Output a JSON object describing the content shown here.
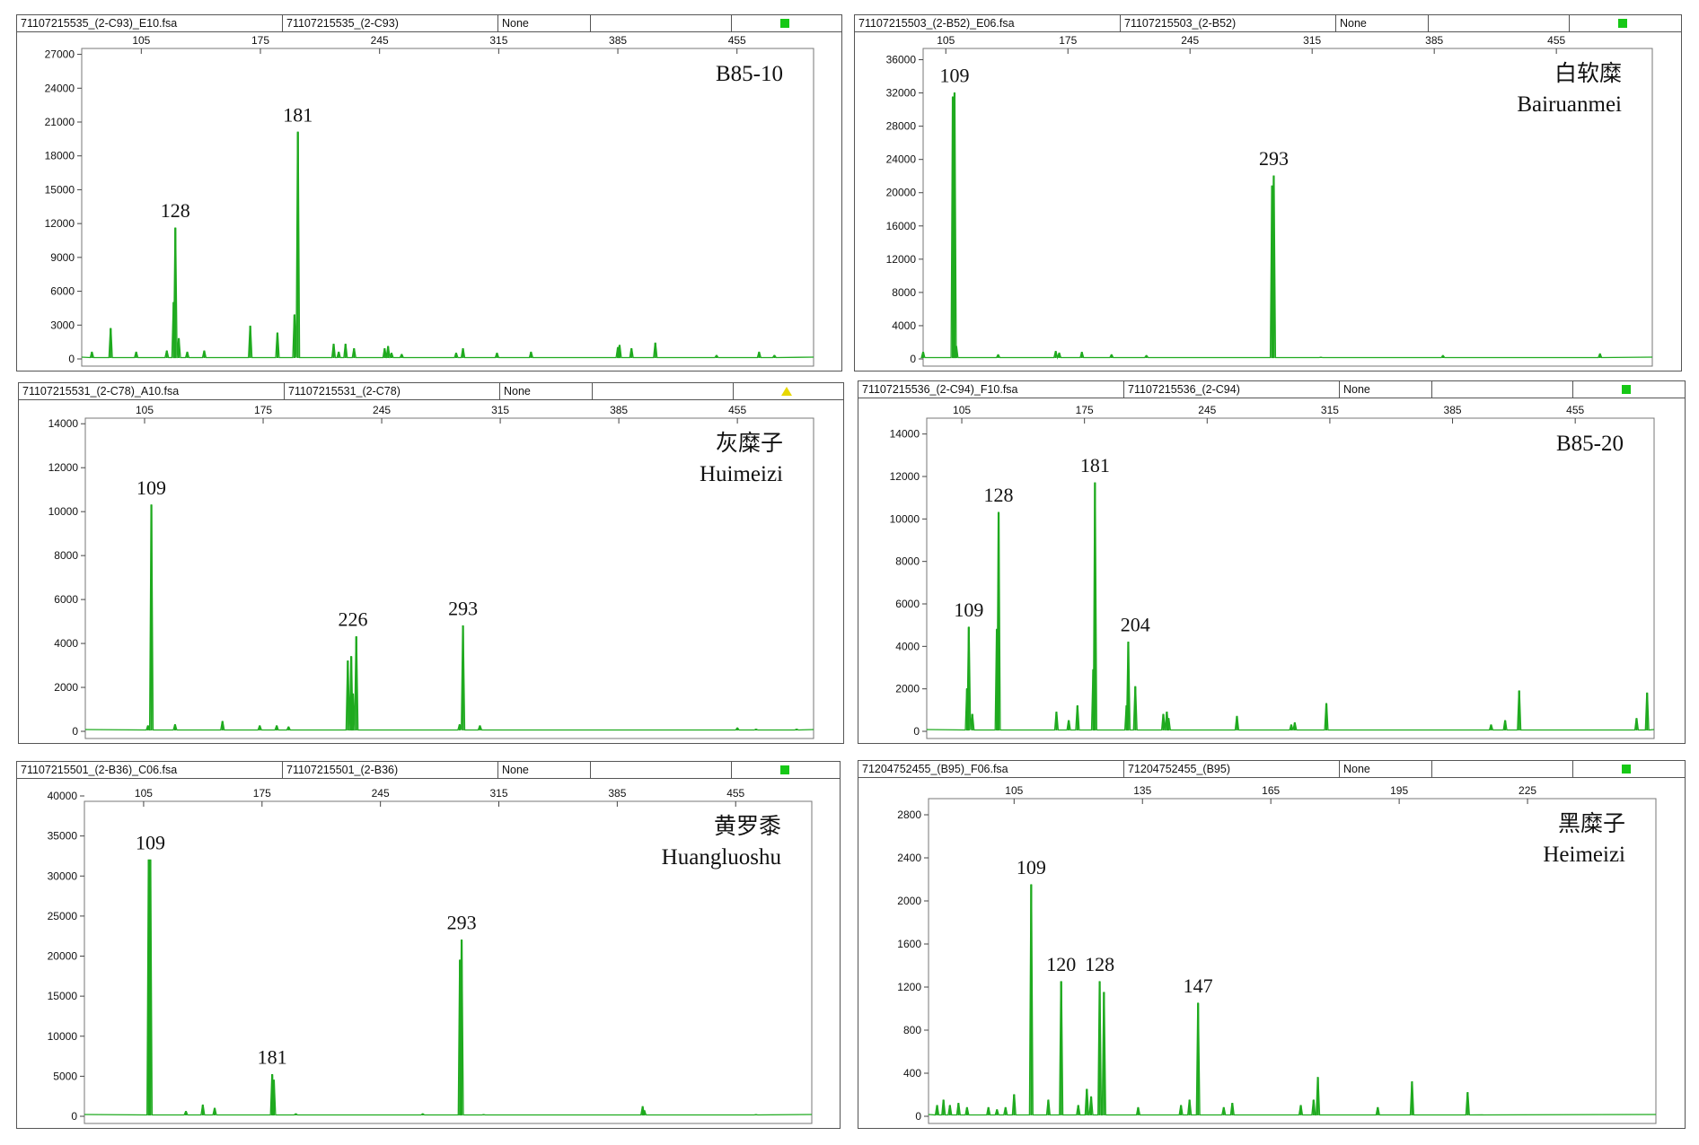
{
  "colors": {
    "trace": "#1faa1f",
    "indicator_ok": "#16c816",
    "indicator_warn": "#e8d800"
  },
  "panels": [
    {
      "header": {
        "file": "71107215535_(2-C93)_E10.fsa",
        "sample": "71107215535_(2-C93)",
        "std": "None",
        "indicator": "green-square"
      },
      "sample_name": [
        "B85-10"
      ],
      "chart_data": {
        "type": "line",
        "x_ticks": [
          105,
          175,
          245,
          315,
          385,
          455
        ],
        "y_ticks": [
          0,
          3000,
          6000,
          9000,
          12000,
          15000,
          18000,
          21000,
          24000,
          27000
        ],
        "xlim": [
          70,
          500
        ],
        "ylim": [
          0,
          28000
        ],
        "peaks": [
          [
            76,
            600
          ],
          [
            87,
            2700
          ],
          [
            102,
            600
          ],
          [
            120,
            700
          ],
          [
            124,
            5000
          ],
          [
            125,
            11600
          ],
          [
            127,
            1800
          ],
          [
            132,
            600
          ],
          [
            142,
            700
          ],
          [
            169,
            2900
          ],
          [
            185,
            2300
          ],
          [
            195,
            3900
          ],
          [
            197,
            20100
          ],
          [
            218,
            1300
          ],
          [
            221,
            600
          ],
          [
            225,
            1300
          ],
          [
            230,
            900
          ],
          [
            248,
            900
          ],
          [
            250,
            1100
          ],
          [
            252,
            500
          ],
          [
            258,
            400
          ],
          [
            290,
            500
          ],
          [
            294,
            900
          ],
          [
            314,
            500
          ],
          [
            334,
            600
          ],
          [
            385,
            1000
          ],
          [
            386,
            1200
          ],
          [
            393,
            900
          ],
          [
            407,
            1400
          ],
          [
            443,
            300
          ],
          [
            468,
            600
          ],
          [
            477,
            300
          ]
        ],
        "labels": [
          {
            "text": "128",
            "x": 125,
            "y": 11600
          },
          {
            "text": "181",
            "x": 197,
            "y": 20100
          }
        ]
      }
    },
    {
      "header": {
        "file": "71107215503_(2-B52)_E06.fsa",
        "sample": "71107215503_(2-B52)",
        "std": "None",
        "indicator": "green-square"
      },
      "sample_name": [
        "白软糜",
        "Bairuanmei"
      ],
      "chart_data": {
        "type": "line",
        "x_ticks": [
          105,
          175,
          245,
          315,
          385,
          455
        ],
        "y_ticks": [
          0,
          4000,
          8000,
          12000,
          16000,
          20000,
          24000,
          28000,
          32000,
          36000
        ],
        "xlim": [
          92,
          510
        ],
        "ylim": [
          0,
          38000
        ],
        "peaks": [
          [
            92,
            800
          ],
          [
            109,
            31500
          ],
          [
            110,
            32000
          ],
          [
            111,
            1500
          ],
          [
            135,
            500
          ],
          [
            168,
            900
          ],
          [
            170,
            700
          ],
          [
            183,
            800
          ],
          [
            200,
            500
          ],
          [
            220,
            400
          ],
          [
            292,
            20800
          ],
          [
            293,
            22000
          ],
          [
            320,
            200
          ],
          [
            390,
            400
          ],
          [
            480,
            600
          ]
        ],
        "labels": [
          {
            "text": "109",
            "x": 110,
            "y": 32000
          },
          {
            "text": "293",
            "x": 293,
            "y": 22000
          }
        ]
      }
    },
    {
      "header": {
        "file": "71107215531_(2-C78)_A10.fsa",
        "sample": "71107215531_(2-C78)",
        "std": "None",
        "indicator": "yellow-triangle"
      },
      "sample_name": [
        "灰糜子",
        "Huimeizi"
      ],
      "chart_data": {
        "type": "line",
        "x_ticks": [
          105,
          175,
          245,
          315,
          385,
          455
        ],
        "y_ticks": [
          0,
          2000,
          4000,
          6000,
          8000,
          10000,
          12000,
          14000
        ],
        "xlim": [
          70,
          500
        ],
        "ylim": [
          0,
          14500
        ],
        "peaks": [
          [
            107,
            250
          ],
          [
            109,
            10300
          ],
          [
            123,
            300
          ],
          [
            151,
            450
          ],
          [
            173,
            250
          ],
          [
            183,
            250
          ],
          [
            190,
            200
          ],
          [
            225,
            3200
          ],
          [
            227,
            3400
          ],
          [
            228,
            1700
          ],
          [
            230,
            4300
          ],
          [
            291,
            300
          ],
          [
            293,
            4800
          ],
          [
            303,
            250
          ],
          [
            455,
            150
          ],
          [
            466,
            100
          ],
          [
            490,
            100
          ]
        ],
        "labels": [
          {
            "text": "109",
            "x": 109,
            "y": 10300
          },
          {
            "text": "226",
            "x": 228,
            "y": 4300
          },
          {
            "text": "293",
            "x": 293,
            "y": 4800
          }
        ]
      }
    },
    {
      "header": {
        "file": "71107215536_(2-C94)_F10.fsa",
        "sample": "71107215536_(2-C94)",
        "std": "None",
        "indicator": "green-square"
      },
      "sample_name": [
        "B85-20"
      ],
      "chart_data": {
        "type": "line",
        "x_ticks": [
          105,
          175,
          245,
          315,
          385,
          455
        ],
        "y_ticks": [
          0,
          2000,
          4000,
          6000,
          8000,
          10000,
          12000,
          14000
        ],
        "xlim": [
          85,
          500
        ],
        "ylim": [
          0,
          15000
        ],
        "peaks": [
          [
            108,
            2000
          ],
          [
            109,
            4900
          ],
          [
            111,
            800
          ],
          [
            125,
            4800
          ],
          [
            126,
            10300
          ],
          [
            159,
            900
          ],
          [
            166,
            500
          ],
          [
            171,
            1200
          ],
          [
            180,
            2900
          ],
          [
            181,
            11700
          ],
          [
            199,
            1200
          ],
          [
            200,
            4200
          ],
          [
            204,
            2100
          ],
          [
            220,
            800
          ],
          [
            222,
            900
          ],
          [
            223,
            600
          ],
          [
            262,
            700
          ],
          [
            293,
            300
          ],
          [
            295,
            400
          ],
          [
            313,
            1300
          ],
          [
            407,
            300
          ],
          [
            415,
            500
          ],
          [
            423,
            1900
          ],
          [
            490,
            600
          ],
          [
            496,
            1800
          ]
        ],
        "labels": [
          {
            "text": "109",
            "x": 109,
            "y": 4900
          },
          {
            "text": "128",
            "x": 126,
            "y": 10300
          },
          {
            "text": "181",
            "x": 181,
            "y": 11700
          },
          {
            "text": "204",
            "x": 204,
            "y": 4200
          }
        ]
      }
    },
    {
      "header": {
        "file": "71107215501_(2-B36)_C06.fsa",
        "sample": "71107215501_(2-B36)",
        "std": "None",
        "indicator": "green-square"
      },
      "sample_name": [
        "黄罗黍",
        "Huangluoshu"
      ],
      "chart_data": {
        "type": "line",
        "x_ticks": [
          105,
          175,
          245,
          315,
          385,
          455
        ],
        "y_ticks": [
          0,
          5000,
          10000,
          15000,
          20000,
          25000,
          30000,
          35000,
          40000
        ],
        "xlim": [
          70,
          500
        ],
        "ylim": [
          0,
          40000
        ],
        "peaks": [
          [
            108,
            32000
          ],
          [
            109,
            32000
          ],
          [
            130,
            600
          ],
          [
            140,
            1400
          ],
          [
            147,
            1000
          ],
          [
            181,
            5200
          ],
          [
            182,
            4500
          ],
          [
            195,
            300
          ],
          [
            270,
            300
          ],
          [
            292,
            19500
          ],
          [
            293,
            22000
          ],
          [
            306,
            200
          ],
          [
            400,
            1200
          ],
          [
            401,
            700
          ],
          [
            467,
            200
          ]
        ],
        "labels": [
          {
            "text": "109",
            "x": 109,
            "y": 32000
          },
          {
            "text": "181",
            "x": 181,
            "y": 5200
          },
          {
            "text": "293",
            "x": 293,
            "y": 22000
          }
        ]
      }
    },
    {
      "header": {
        "file": "71204752455_(B95)_F06.fsa",
        "sample": "71204752455_(B95)",
        "std": "None",
        "indicator": "green-square"
      },
      "sample_name": [
        "黑糜子",
        "Heimeizi"
      ],
      "chart_data": {
        "type": "line",
        "x_ticks": [
          105,
          135,
          165,
          195,
          225
        ],
        "y_ticks": [
          0,
          400,
          800,
          1200,
          1600,
          2000,
          2400,
          2800
        ],
        "xlim": [
          85,
          255
        ],
        "ylim": [
          0,
          3000
        ],
        "peaks": [
          [
            87,
            100
          ],
          [
            88.5,
            150
          ],
          [
            90,
            100
          ],
          [
            92,
            120
          ],
          [
            94,
            80
          ],
          [
            99,
            80
          ],
          [
            101,
            60
          ],
          [
            103,
            80
          ],
          [
            105,
            200
          ],
          [
            109,
            2150
          ],
          [
            113,
            150
          ],
          [
            116,
            1250
          ],
          [
            120,
            100
          ],
          [
            122,
            250
          ],
          [
            123,
            180
          ],
          [
            125,
            1250
          ],
          [
            126,
            1150
          ],
          [
            134,
            80
          ],
          [
            144,
            100
          ],
          [
            146,
            150
          ],
          [
            148,
            1050
          ],
          [
            154,
            80
          ],
          [
            156,
            120
          ],
          [
            172,
            100
          ],
          [
            175,
            150
          ],
          [
            176,
            360
          ],
          [
            190,
            80
          ],
          [
            198,
            320
          ],
          [
            211,
            220
          ]
        ],
        "labels": [
          {
            "text": "109",
            "x": 109,
            "y": 2150
          },
          {
            "text": "120",
            "x": 116,
            "y": 1250
          },
          {
            "text": "128",
            "x": 125,
            "y": 1250
          },
          {
            "text": "147",
            "x": 148,
            "y": 1050
          }
        ]
      }
    }
  ]
}
